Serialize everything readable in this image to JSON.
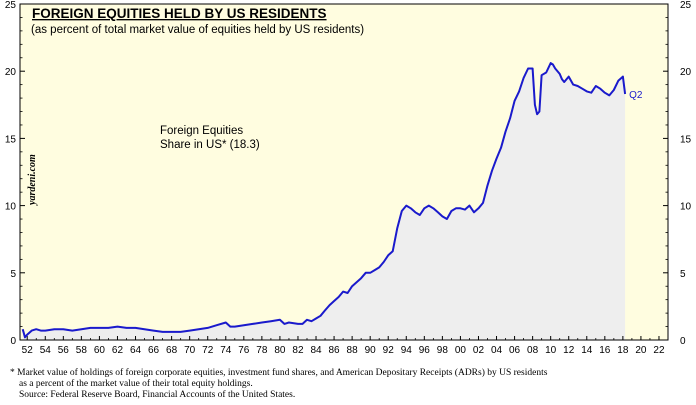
{
  "chart_data": {
    "type": "area",
    "title": "FOREIGN EQUITIES HELD BY US RESIDENTS",
    "subtitle": "(as percent of total market value of equities held by US residents)",
    "annotation": {
      "line1": "Foreign Equities",
      "line2": "Share in US* (18.3)"
    },
    "end_label": "Q2",
    "watermark": "yardeni.com",
    "xlim": [
      1951.2,
      2023
    ],
    "ylim": [
      0,
      25
    ],
    "x_ticks": [
      {
        "v": 1952,
        "label": "52"
      },
      {
        "v": 1954,
        "label": "54"
      },
      {
        "v": 1956,
        "label": "56"
      },
      {
        "v": 1958,
        "label": "58"
      },
      {
        "v": 1960,
        "label": "60"
      },
      {
        "v": 1962,
        "label": "62"
      },
      {
        "v": 1964,
        "label": "64"
      },
      {
        "v": 1966,
        "label": "66"
      },
      {
        "v": 1968,
        "label": "68"
      },
      {
        "v": 1970,
        "label": "70"
      },
      {
        "v": 1972,
        "label": "72"
      },
      {
        "v": 1974,
        "label": "74"
      },
      {
        "v": 1976,
        "label": "76"
      },
      {
        "v": 1978,
        "label": "78"
      },
      {
        "v": 1980,
        "label": "80"
      },
      {
        "v": 1982,
        "label": "82"
      },
      {
        "v": 1984,
        "label": "84"
      },
      {
        "v": 1986,
        "label": "86"
      },
      {
        "v": 1988,
        "label": "88"
      },
      {
        "v": 1990,
        "label": "90"
      },
      {
        "v": 1992,
        "label": "92"
      },
      {
        "v": 1994,
        "label": "94"
      },
      {
        "v": 1996,
        "label": "96"
      },
      {
        "v": 1998,
        "label": "98"
      },
      {
        "v": 2000,
        "label": "00"
      },
      {
        "v": 2002,
        "label": "02"
      },
      {
        "v": 2004,
        "label": "04"
      },
      {
        "v": 2006,
        "label": "06"
      },
      {
        "v": 2008,
        "label": "08"
      },
      {
        "v": 2010,
        "label": "10"
      },
      {
        "v": 2012,
        "label": "12"
      },
      {
        "v": 2014,
        "label": "14"
      },
      {
        "v": 2016,
        "label": "16"
      },
      {
        "v": 2018,
        "label": "18"
      },
      {
        "v": 2020,
        "label": "20"
      },
      {
        "v": 2022,
        "label": "22"
      }
    ],
    "y_ticks": [
      0,
      5,
      10,
      15,
      20,
      25
    ],
    "colors": {
      "line": "#1a1acc",
      "fill": "#eeeeee",
      "plot_background": "#fffde0",
      "title": "#000000"
    },
    "series": [
      {
        "x": [
          1951.5,
          1951.75,
          1952,
          1952.5,
          1953,
          1953.5,
          1954,
          1955,
          1956,
          1957,
          1958,
          1959,
          1960,
          1961,
          1962,
          1963,
          1964,
          1965,
          1966,
          1967,
          1968,
          1969,
          1970,
          1971,
          1972,
          1973,
          1974,
          1974.5,
          1975,
          1976,
          1977,
          1978,
          1979,
          1980,
          1980.5,
          1981,
          1982,
          1982.5,
          1983,
          1983.5,
          1984,
          1984.5,
          1985,
          1985.5,
          1986,
          1986.5,
          1987,
          1987.5,
          1988,
          1988.5,
          1989,
          1989.5,
          1990,
          1990.5,
          1991,
          1991.5,
          1992,
          1992.5,
          1993,
          1993.5,
          1994,
          1994.5,
          1995,
          1995.5,
          1996,
          1996.5,
          1997,
          1997.5,
          1998,
          1998.5,
          1999,
          1999.5,
          2000,
          2000.5,
          2001,
          2001.5,
          2002,
          2002.5,
          2003,
          2003.5,
          2004,
          2004.5,
          2005,
          2005.5,
          2006,
          2006.5,
          2007,
          2007.5,
          2008,
          2008.25,
          2008.5,
          2008.75,
          2009,
          2009.5,
          2010,
          2010.25,
          2010.5,
          2011,
          2011.25,
          2011.5,
          2012,
          2012.5,
          2013,
          2013.5,
          2014,
          2014.5,
          2015,
          2015.5,
          2016,
          2016.5,
          2017,
          2017.5,
          2018,
          2018.25
        ],
        "values": [
          0.8,
          0.2,
          0.4,
          0.7,
          0.8,
          0.7,
          0.7,
          0.8,
          0.8,
          0.7,
          0.8,
          0.9,
          0.9,
          0.9,
          1.0,
          0.9,
          0.9,
          0.8,
          0.7,
          0.6,
          0.6,
          0.6,
          0.7,
          0.8,
          0.9,
          1.1,
          1.3,
          1.0,
          1.0,
          1.1,
          1.2,
          1.3,
          1.4,
          1.5,
          1.2,
          1.3,
          1.2,
          1.2,
          1.5,
          1.4,
          1.6,
          1.8,
          2.2,
          2.6,
          2.9,
          3.2,
          3.6,
          3.5,
          4.0,
          4.3,
          4.6,
          5.0,
          5.0,
          5.2,
          5.4,
          5.8,
          6.3,
          6.6,
          8.3,
          9.6,
          10.0,
          9.8,
          9.5,
          9.3,
          9.8,
          10.0,
          9.8,
          9.5,
          9.2,
          9.0,
          9.6,
          9.8,
          9.8,
          9.7,
          10.0,
          9.5,
          9.8,
          10.2,
          11.5,
          12.6,
          13.5,
          14.3,
          15.5,
          16.5,
          17.8,
          18.5,
          19.5,
          20.2,
          20.2,
          17.5,
          16.8,
          17.0,
          19.7,
          19.9,
          20.6,
          20.5,
          20.2,
          19.8,
          19.4,
          19.2,
          19.6,
          19.0,
          18.9,
          18.7,
          18.5,
          18.4,
          18.9,
          18.7,
          18.4,
          18.2,
          18.6,
          19.3,
          19.6,
          18.3
        ]
      }
    ]
  },
  "footnote": {
    "line1": "*  Market value of holdings of foreign corporate equities, investment fund shares, and  American Depositary Receipts (ADRs) by US residents",
    "line2": "as a percent of the market value of their total equity holdings.",
    "line3": "Source: Federal Reserve Board, Financial Accounts of the United States."
  }
}
